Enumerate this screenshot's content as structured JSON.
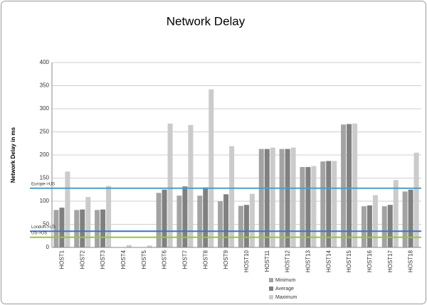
{
  "chart_data": {
    "type": "bar",
    "title": "Network Delay",
    "y_label": "Network Delay in ms",
    "categories": [
      "HOST1",
      "HOST2",
      "HOST3",
      "HOST4",
      "HOST5",
      "HOST6",
      "HOST7",
      "HOST8",
      "HOST9",
      "HOST10",
      "HOST11",
      "HOST12",
      "HOST13",
      "HOST14",
      "HOST15",
      "HOST16",
      "HOST17",
      "HOST18"
    ],
    "series": [
      {
        "name": "Minimum",
        "color": "#a3a3a3",
        "values": [
          81,
          81,
          81,
          0,
          0,
          118,
          112,
          112,
          100,
          90,
          213,
          213,
          174,
          186,
          266,
          89,
          89,
          121
        ]
      },
      {
        "name": "Average",
        "color": "#808080",
        "values": [
          86,
          82,
          82,
          0,
          0,
          125,
          132,
          130,
          115,
          92,
          213,
          213,
          174,
          187,
          267,
          91,
          92,
          125
        ]
      },
      {
        "name": "Maximum",
        "color": "#cbcbcb",
        "values": [
          164,
          109,
          133,
          5,
          4,
          268,
          265,
          342,
          219,
          116,
          216,
          216,
          176,
          187,
          268,
          113,
          146,
          205
        ]
      }
    ],
    "reference_lines": [
      {
        "label": "Europe->US",
        "value": 128,
        "color": "#4a9fc8"
      },
      {
        "label": "London->US",
        "value": 35,
        "color": "#3d74c4"
      },
      {
        "label": "US->US",
        "value": 22,
        "color": "#9cc43c"
      }
    ],
    "ylim": [
      0,
      400
    ],
    "yticks": [
      0,
      50,
      100,
      150,
      200,
      250,
      300,
      350,
      400
    ],
    "grid": true
  }
}
